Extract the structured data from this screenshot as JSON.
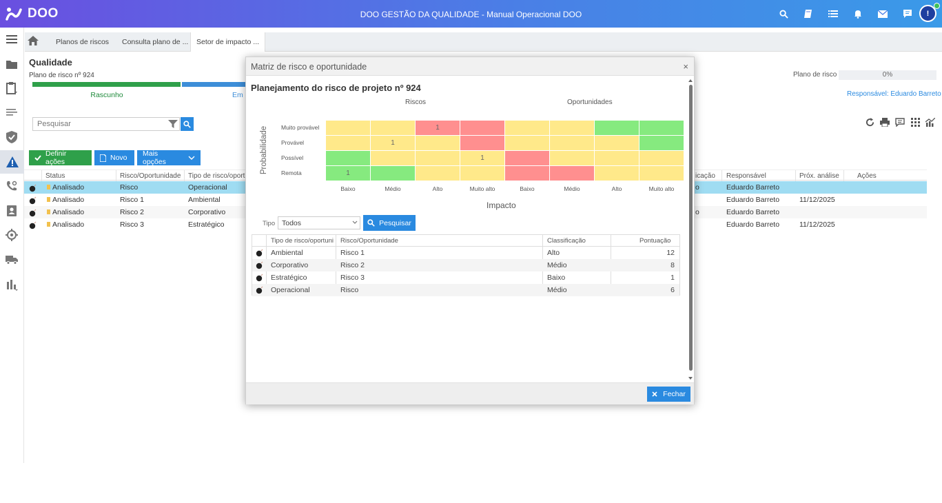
{
  "brand": {
    "name": "DOO"
  },
  "app_title": "DOO GESTÃO DA QUALIDADE - Manual Operacional DOO",
  "topbar_icons": [
    "search-icon",
    "book-icon",
    "list-icon",
    "bell-icon",
    "mail-icon",
    "chat-icon"
  ],
  "user": {
    "avatar_label": "!",
    "status_color": "#3ec05a"
  },
  "colors": {
    "accent": "#2a8ae0",
    "green": "#2fa04a",
    "matrix_yellow": "#ffe98a",
    "matrix_red": "#ff8f8f",
    "matrix_green": "#86ea7f"
  },
  "sidebar_icons": [
    "menu-icon",
    "folder-icon",
    "clipboard-icon",
    "list-lines-icon",
    "shield-check-icon",
    "warning-icon",
    "phone-settings-icon",
    "contact-card-icon",
    "target-icon",
    "truck-icon",
    "bar-chart-icon"
  ],
  "tabs": [
    {
      "label": "Planos de riscos"
    },
    {
      "label": "Consulta plano de ..."
    },
    {
      "label": "Setor de impacto ..."
    }
  ],
  "page": {
    "title": "Qualidade",
    "plan_label": "Plano de risco nº 924",
    "steps": [
      "Rascunho",
      "Em a"
    ],
    "plan_right_label": "Plano de risco",
    "plan_progress_text": "0%",
    "plan_progress_value": 0,
    "responsavel": "Responsável: Eduardo Barreto",
    "search_placeholder": "Pesquisar"
  },
  "actions": {
    "define": "Definir ações",
    "new": "Novo",
    "more": "Mais opções"
  },
  "grid": {
    "headers": [
      "Status",
      "Risco/Oportunidade",
      "Tipo de risco/oportu",
      "icação",
      "Responsável",
      "Próx. análise",
      "Ações"
    ],
    "rows": [
      {
        "status": "Analisado",
        "risk": "Risco",
        "type": "Operacional",
        "tail": "o",
        "resp": "Eduardo Barreto",
        "next": ""
      },
      {
        "status": "Analisado",
        "risk": "Risco 1",
        "type": "Ambiental",
        "tail": "",
        "resp": "Eduardo Barreto",
        "next": "11/12/2025"
      },
      {
        "status": "Analisado",
        "risk": "Risco 2",
        "type": "Corporativo",
        "tail": "o",
        "resp": "Eduardo Barreto",
        "next": ""
      },
      {
        "status": "Analisado",
        "risk": "Risco 3",
        "type": "Estratégico",
        "tail": "",
        "resp": "Eduardo Barreto",
        "next": "11/12/2025"
      }
    ]
  },
  "modal": {
    "title": "Matriz de risco e oportunidade",
    "close": "×",
    "subtitle": "Planejamento do risco de projeto nº 924",
    "riscos_label": "Riscos",
    "oport_label": "Oportunidades",
    "prob_label": "Probabilidade",
    "impact_label": "Impacto",
    "prob_levels": [
      "Muito provável",
      "Provável",
      "Possível",
      "Remota"
    ],
    "impact_levels": [
      "Baixo",
      "Médio",
      "Alto",
      "Muito alto",
      "Baixo",
      "Médio",
      "Alto",
      "Muito alto"
    ],
    "matrix_colors": [
      [
        "y",
        "y",
        "r",
        "r",
        "y",
        "y",
        "g",
        "g"
      ],
      [
        "y",
        "y",
        "y",
        "r",
        "y",
        "y",
        "y",
        "g"
      ],
      [
        "g",
        "y",
        "y",
        "y",
        "r",
        "y",
        "y",
        "y"
      ],
      [
        "g",
        "g",
        "y",
        "y",
        "r",
        "r",
        "y",
        "y"
      ]
    ],
    "matrix_counts": [
      [
        "",
        "",
        "1",
        "",
        "",
        "",
        "",
        ""
      ],
      [
        "",
        "1",
        "",
        "",
        "",
        "",
        "",
        ""
      ],
      [
        "",
        "",
        "",
        "1",
        "",
        "",
        "",
        ""
      ],
      [
        "1",
        "",
        "",
        "",
        "",
        "",
        "",
        ""
      ]
    ],
    "filter": {
      "label": "Tipo",
      "value": "Todos",
      "button": "Pesquisar"
    },
    "table": {
      "headers": [
        "Tipo de risco/oportuni",
        "Risco/Oportunidade",
        "Classificação",
        "Pontuação"
      ],
      "rows": [
        {
          "type": "Ambiental",
          "risk": "Risco 1",
          "class": "Alto",
          "score": "12"
        },
        {
          "type": "Corporativo",
          "risk": "Risco 2",
          "class": "Médio",
          "score": "8"
        },
        {
          "type": "Estratégico",
          "risk": "Risco 3",
          "class": "Baixo",
          "score": "1"
        },
        {
          "type": "Operacional",
          "risk": "Risco",
          "class": "Médio",
          "score": "6"
        }
      ]
    },
    "close_button": "Fechar"
  }
}
